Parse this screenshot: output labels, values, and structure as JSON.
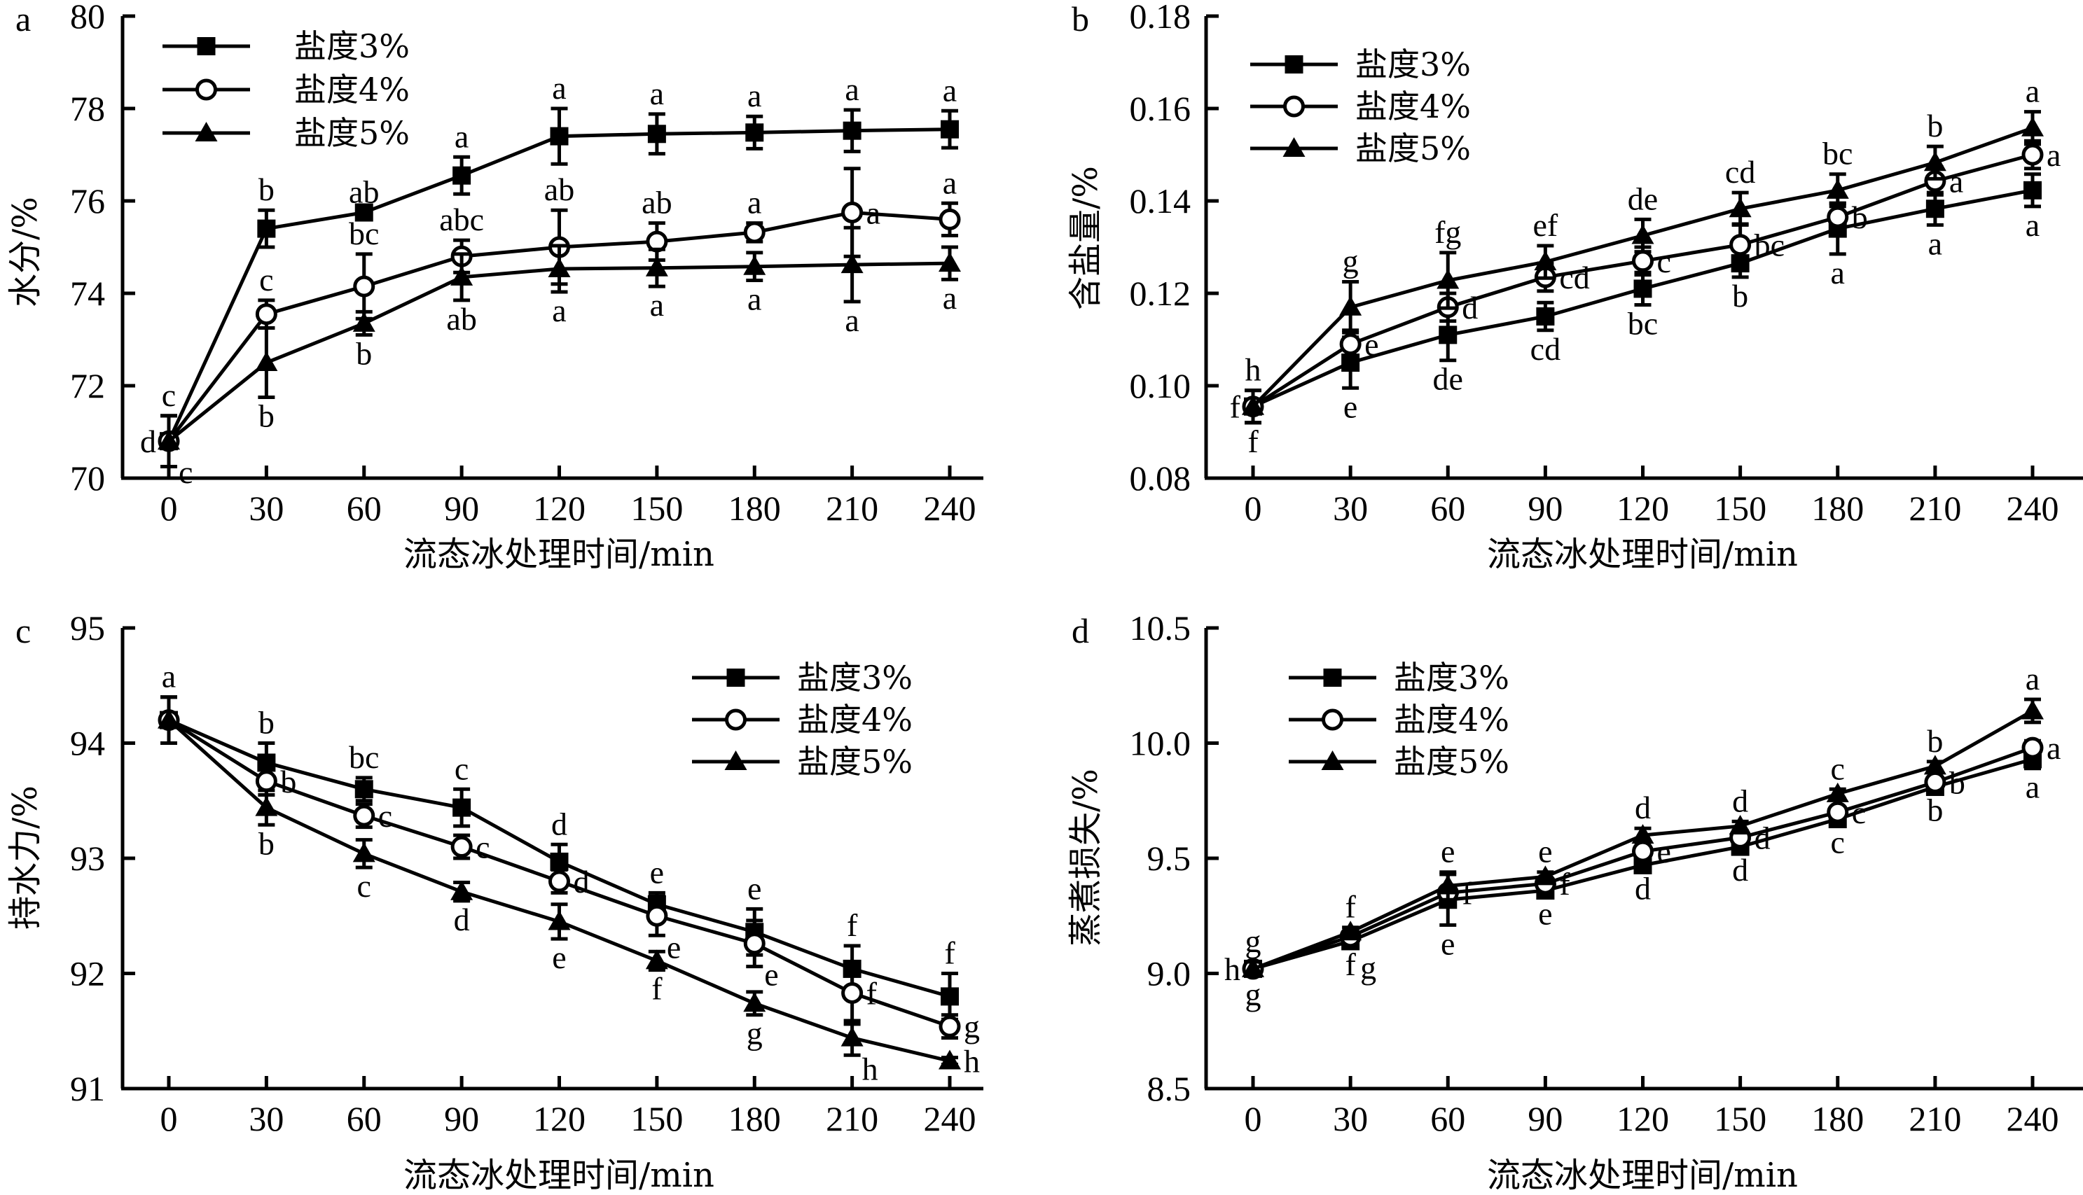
{
  "figure": {
    "x_ticks": [
      "0",
      "30",
      "60",
      "90",
      "120",
      "150",
      "180",
      "210",
      "240"
    ],
    "xlabel": "流态冰处理时间/min",
    "legend": [
      {
        "name": "盐度3%",
        "marker": "filled-square"
      },
      {
        "name": "盐度4%",
        "marker": "open-circle"
      },
      {
        "name": "盐度5%",
        "marker": "filled-triangle"
      }
    ]
  },
  "chart_data": [
    {
      "panel": "a",
      "type": "line",
      "title": "",
      "xlabel": "流态冰处理时间/min",
      "ylabel": "水分/%",
      "x": [
        0,
        30,
        60,
        90,
        120,
        150,
        180,
        210,
        240
      ],
      "ylim": [
        70,
        80
      ],
      "yticks": [
        70,
        72,
        74,
        76,
        78,
        80
      ],
      "ytick_labels": [
        "70",
        "72",
        "74",
        "76",
        "78",
        "80"
      ],
      "legend_position": "top-left",
      "grid": false,
      "series": [
        {
          "name": "盐度3%",
          "marker": "filled-square",
          "values": [
            70.8,
            75.4,
            75.75,
            76.55,
            77.4,
            77.45,
            77.48,
            77.52,
            77.55
          ],
          "errors": [
            0.55,
            0.4,
            0.0,
            0.4,
            0.6,
            0.43,
            0.35,
            0.45,
            0.4
          ],
          "sig_letters": [
            "d",
            "b",
            "ab",
            "a",
            "a",
            "a",
            "a",
            "a",
            "a"
          ],
          "sig_pos": [
            "left",
            "above",
            "above",
            "above",
            "above",
            "above",
            "above",
            "above",
            "above"
          ]
        },
        {
          "name": "盐度4%",
          "marker": "open-circle",
          "values": [
            70.8,
            73.55,
            74.15,
            74.8,
            75.0,
            75.12,
            75.32,
            75.75,
            75.6
          ],
          "errors": [
            0.55,
            0.3,
            0.7,
            0.35,
            0.8,
            0.4,
            0.2,
            0.95,
            0.35
          ],
          "sig_letters": [
            "c",
            "c",
            "bc",
            "abc",
            "ab",
            "ab",
            "a",
            "a",
            "a"
          ],
          "sig_pos": [
            "above",
            "above",
            "above",
            "above",
            "above",
            "above",
            "above",
            "right",
            "above"
          ]
        },
        {
          "name": "盐度5%",
          "marker": "filled-triangle",
          "values": [
            70.8,
            72.5,
            73.35,
            74.35,
            74.53,
            74.55,
            74.58,
            74.62,
            74.65
          ],
          "errors": [
            0.55,
            0.75,
            0.25,
            0.5,
            0.5,
            0.4,
            0.3,
            0.8,
            0.35
          ],
          "sig_letters": [
            "c",
            "b",
            "b",
            "ab",
            "a",
            "a",
            "a",
            "a",
            "a"
          ],
          "sig_pos": [
            "below-right",
            "below",
            "below",
            "below",
            "below",
            "below",
            "below",
            "below",
            "below"
          ]
        }
      ]
    },
    {
      "panel": "b",
      "type": "line",
      "title": "",
      "xlabel": "流态冰处理时间/min",
      "ylabel": "含盐量/%",
      "x": [
        0,
        30,
        60,
        90,
        120,
        150,
        180,
        210,
        240
      ],
      "ylim": [
        0.08,
        0.18
      ],
      "yticks": [
        0.08,
        0.1,
        0.12,
        0.14,
        0.16,
        0.18
      ],
      "ytick_labels": [
        "0.08",
        "0.10",
        "0.12",
        "0.14",
        "0.16",
        "0.18"
      ],
      "legend_position": "top-left",
      "grid": false,
      "series": [
        {
          "name": "盐度3%",
          "marker": "filled-square",
          "values": [
            0.0955,
            0.105,
            0.111,
            0.115,
            0.121,
            0.1265,
            0.134,
            0.1383,
            0.1423
          ],
          "errors": [
            0.0035,
            0.0055,
            0.0055,
            0.003,
            0.0035,
            0.003,
            0.0055,
            0.0035,
            0.0035
          ],
          "sig_letters": [
            "f",
            "e",
            "de",
            "cd",
            "bc",
            "b",
            "a",
            "a",
            "a"
          ],
          "sig_pos": [
            "below",
            "below",
            "below",
            "below",
            "below",
            "below",
            "below",
            "below",
            "below"
          ]
        },
        {
          "name": "盐度4%",
          "marker": "open-circle",
          "values": [
            0.0955,
            0.109,
            0.117,
            0.1235,
            0.127,
            0.1305,
            0.1365,
            0.1443,
            0.15
          ],
          "errors": [
            0.0035,
            0.003,
            0.003,
            0.003,
            0.003,
            0.0045,
            0.003,
            0.003,
            0.003
          ],
          "sig_letters": [
            "f",
            "e",
            "d",
            "cd",
            "c",
            "bc",
            "b",
            "a",
            "a"
          ],
          "sig_pos": [
            "left",
            "right",
            "right",
            "right",
            "right",
            "right",
            "right",
            "right",
            "right"
          ]
        },
        {
          "name": "盐度5%",
          "marker": "filled-triangle",
          "values": [
            0.0955,
            0.117,
            0.1228,
            0.1268,
            0.1325,
            0.1383,
            0.1423,
            0.1483,
            0.1558
          ],
          "errors": [
            0.0035,
            0.0055,
            0.006,
            0.0035,
            0.0035,
            0.0035,
            0.0035,
            0.0035,
            0.0035
          ],
          "sig_letters": [
            "h",
            "g",
            "fg",
            "ef",
            "de",
            "cd",
            "bc",
            "b",
            "a"
          ],
          "sig_pos": [
            "above",
            "above",
            "above",
            "above",
            "above",
            "above",
            "above",
            "above",
            "above"
          ]
        }
      ]
    },
    {
      "panel": "c",
      "type": "line",
      "title": "",
      "xlabel": "流态冰处理时间/min",
      "ylabel": "持水力/%",
      "x": [
        0,
        30,
        60,
        90,
        120,
        150,
        180,
        210,
        240
      ],
      "ylim": [
        91,
        95
      ],
      "yticks": [
        91,
        92,
        93,
        94,
        95
      ],
      "ytick_labels": [
        "91",
        "92",
        "93",
        "94",
        "95"
      ],
      "legend_position": "top-right",
      "grid": false,
      "series": [
        {
          "name": "盐度3%",
          "marker": "filled-square",
          "values": [
            94.2,
            93.83,
            93.6,
            93.44,
            92.97,
            92.6,
            92.36,
            92.04,
            91.8
          ],
          "errors": [
            0.2,
            0.17,
            0.1,
            0.16,
            0.15,
            0.1,
            0.2,
            0.2,
            0.2
          ],
          "sig_letters": [
            "a",
            "b",
            "bc",
            "c",
            "d",
            "e",
            "e",
            "f",
            "f"
          ],
          "sig_pos": [
            "above",
            "above",
            "above",
            "above",
            "above",
            "above",
            "above",
            "above",
            "above"
          ]
        },
        {
          "name": "盐度4%",
          "marker": "open-circle",
          "values": [
            94.2,
            93.67,
            93.37,
            93.1,
            92.8,
            92.5,
            92.26,
            91.83,
            91.54
          ],
          "errors": [
            0.2,
            0.12,
            0.1,
            0.1,
            0.1,
            0.17,
            0.2,
            0.27,
            0.1
          ],
          "sig_letters": [
            "a",
            "b",
            "c",
            "c",
            "d",
            "e",
            "e",
            "f",
            "g"
          ],
          "sig_pos": [
            "none",
            "right",
            "right",
            "right",
            "right",
            "below-right",
            "below-right",
            "right",
            "right"
          ]
        },
        {
          "name": "盐度5%",
          "marker": "filled-triangle",
          "values": [
            94.2,
            93.44,
            93.04,
            92.71,
            92.45,
            92.11,
            91.74,
            91.44,
            91.24
          ],
          "errors": [
            0.2,
            0.15,
            0.12,
            0.08,
            0.15,
            0.08,
            0.1,
            0.15,
            0.03
          ],
          "sig_letters": [
            "a",
            "b",
            "c",
            "d",
            "e",
            "f",
            "g",
            "h",
            "h"
          ],
          "sig_pos": [
            "none",
            "below",
            "below",
            "below",
            "below",
            "below",
            "below",
            "below-right",
            "right"
          ]
        }
      ]
    },
    {
      "panel": "d",
      "type": "line",
      "title": "",
      "xlabel": "流态冰处理时间/min",
      "ylabel": "蒸煮损失/%",
      "x": [
        0,
        30,
        60,
        90,
        120,
        150,
        180,
        210,
        240
      ],
      "ylim": [
        8.5,
        10.5
      ],
      "yticks": [
        8.5,
        9.0,
        9.5,
        10.0,
        10.5
      ],
      "ytick_labels": [
        "8.5",
        "9.0",
        "9.5",
        "10.0",
        "10.5"
      ],
      "legend_position": "top-left",
      "grid": false,
      "series": [
        {
          "name": "盐度3%",
          "marker": "filled-square",
          "values": [
            9.02,
            9.14,
            9.32,
            9.36,
            9.47,
            9.55,
            9.67,
            9.81,
            9.93
          ],
          "errors": [
            0.03,
            0.02,
            0.11,
            0.02,
            0.02,
            0.02,
            0.02,
            0.02,
            0.04
          ],
          "sig_letters": [
            "g",
            "f",
            "e",
            "e",
            "d",
            "d",
            "c",
            "b",
            "a"
          ],
          "sig_pos": [
            "below",
            "below",
            "below",
            "below",
            "below",
            "below",
            "below",
            "below",
            "below"
          ]
        },
        {
          "name": "盐度4%",
          "marker": "open-circle",
          "values": [
            9.02,
            9.16,
            9.35,
            9.39,
            9.53,
            9.59,
            9.7,
            9.83,
            9.98
          ],
          "errors": [
            0.03,
            0.02,
            0.02,
            0.02,
            0.02,
            0.02,
            0.02,
            0.02,
            0.03
          ],
          "sig_letters": [
            "h",
            "g",
            "f",
            "f",
            "e",
            "d",
            "c",
            "b",
            "a"
          ],
          "sig_pos": [
            "left",
            "below-right",
            "right",
            "right",
            "right",
            "right",
            "right",
            "right",
            "right"
          ]
        },
        {
          "name": "盐度5%",
          "marker": "filled-triangle",
          "values": [
            9.02,
            9.18,
            9.38,
            9.42,
            9.6,
            9.64,
            9.78,
            9.9,
            10.14
          ],
          "errors": [
            0.03,
            0.02,
            0.06,
            0.02,
            0.03,
            0.02,
            0.02,
            0.02,
            0.05
          ],
          "sig_letters": [
            "g",
            "f",
            "e",
            "e",
            "d",
            "d",
            "c",
            "b",
            "a"
          ],
          "sig_pos": [
            "above",
            "above",
            "above",
            "above",
            "above",
            "above",
            "above",
            "above",
            "above"
          ]
        }
      ]
    }
  ]
}
